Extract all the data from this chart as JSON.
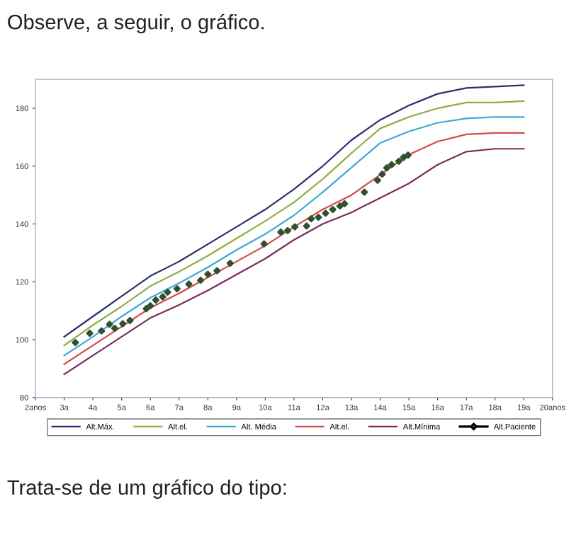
{
  "chart_data": {
    "type": "line",
    "title": "Observe, a seguir, o gráfico.",
    "annotations": [
      "Trata-se de um gráfico do tipo:"
    ],
    "xlim": [
      2,
      20
    ],
    "xticks": [
      {
        "value": 2,
        "label": "2anos"
      },
      {
        "value": 3,
        "label": "3a"
      },
      {
        "value": 4,
        "label": "4a"
      },
      {
        "value": 5,
        "label": "5a"
      },
      {
        "value": 6,
        "label": "6a"
      },
      {
        "value": 7,
        "label": "7a"
      },
      {
        "value": 8,
        "label": "8a"
      },
      {
        "value": 9,
        "label": "9a"
      },
      {
        "value": 10,
        "label": "10a"
      },
      {
        "value": 11,
        "label": "11a"
      },
      {
        "value": 12,
        "label": "12a"
      },
      {
        "value": 13,
        "label": "13a"
      },
      {
        "value": 14,
        "label": "14a"
      },
      {
        "value": 15,
        "label": "15a"
      },
      {
        "value": 16,
        "label": "16a"
      },
      {
        "value": 17,
        "label": "17a"
      },
      {
        "value": 18,
        "label": "18a"
      },
      {
        "value": 19,
        "label": "19a"
      },
      {
        "value": 20,
        "label": "20anos"
      }
    ],
    "ylim": [
      80,
      190
    ],
    "yticks": [
      80,
      100,
      120,
      140,
      160,
      180
    ],
    "x": [
      3,
      4,
      5,
      6,
      7,
      8,
      9,
      10,
      11,
      12,
      13,
      14,
      15,
      16,
      17,
      18,
      19
    ],
    "grid": false,
    "legend": "bottom",
    "marker": "none",
    "line_style": "solid",
    "series": [
      {
        "name": "Alt.Máx.",
        "color": "#2b2f6b",
        "values": [
          101,
          108,
          115,
          122,
          127,
          133,
          139,
          145,
          152,
          160,
          169,
          176,
          181,
          185,
          187,
          187.5,
          188
        ]
      },
      {
        "name": "Alt.el.",
        "color": "#8fae45",
        "values": [
          98,
          105,
          111.5,
          118.5,
          123.5,
          129,
          135,
          141,
          147.5,
          155.5,
          164.5,
          173,
          177,
          180,
          182,
          182,
          182.5
        ]
      },
      {
        "name": "Alt. Média",
        "color": "#3fa9d4",
        "values": [
          94.5,
          101,
          108,
          114.5,
          119.5,
          125,
          131,
          136.5,
          143,
          151,
          159.5,
          168,
          172,
          175,
          176.5,
          177,
          177
        ]
      },
      {
        "name": "Alt.el.",
        "color": "#d24b4b",
        "values": [
          91.5,
          98,
          104.5,
          111,
          116,
          121.5,
          127,
          132.5,
          139,
          145,
          150,
          157,
          164,
          168.5,
          171,
          171.5,
          171.5
        ]
      },
      {
        "name": "Alt.Mínima",
        "color": "#7b2c5e",
        "values": [
          88,
          94.5,
          101,
          107.5,
          112,
          117,
          122.5,
          128,
          134.5,
          140,
          144,
          149,
          154,
          160.5,
          165,
          166,
          166
        ]
      },
      {
        "name": "Alt.Paciente",
        "type": "scatter",
        "marker": "diamond",
        "color": "#2e5230",
        "x": [
          3.39,
          3.89,
          4.3,
          4.58,
          4.76,
          5.04,
          5.29,
          5.86,
          6.0,
          6.19,
          6.43,
          6.6,
          6.93,
          7.34,
          7.75,
          8.0,
          8.32,
          8.78,
          9.96,
          10.54,
          10.78,
          11.03,
          11.44,
          11.6,
          11.85,
          12.1,
          12.35,
          12.6,
          12.76,
          13.45,
          13.91,
          14.07,
          14.23,
          14.4,
          14.65,
          14.81,
          14.97
        ],
        "values": [
          99,
          102.2,
          103,
          105.3,
          103.9,
          105.5,
          106.6,
          110.7,
          111.7,
          113.7,
          114.8,
          116.4,
          117.6,
          119.2,
          120.5,
          122.6,
          123.8,
          126.4,
          133.1,
          137.2,
          137.7,
          139,
          139.3,
          141.8,
          142.3,
          143.7,
          145,
          146.2,
          147,
          151,
          155.1,
          157.2,
          159.4,
          160.5,
          161.7,
          163,
          163.8
        ]
      }
    ]
  }
}
